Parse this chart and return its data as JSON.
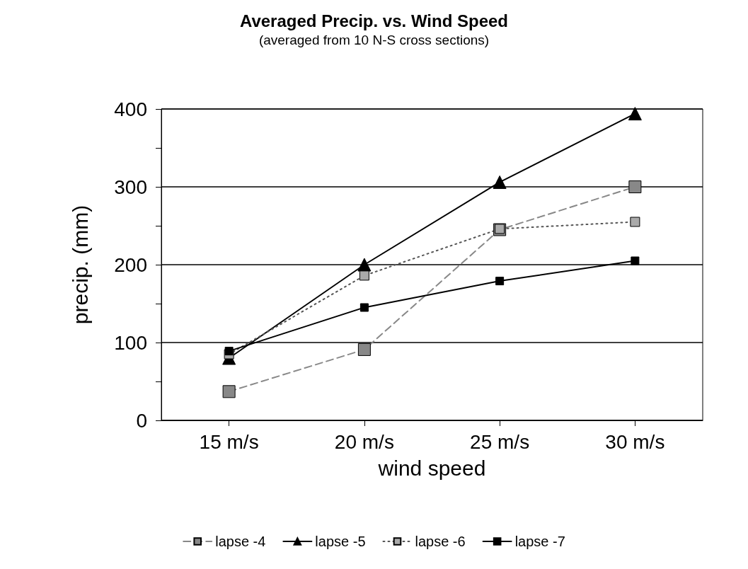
{
  "chart_data": {
    "type": "line",
    "title": "Averaged Precip. vs. Wind Speed",
    "subtitle": "(averaged from 10 N-S cross sections)",
    "xlabel": "wind speed",
    "ylabel": "precip. (mm)",
    "categories": [
      "15 m/s",
      "20 m/s",
      "25 m/s",
      "30 m/s"
    ],
    "series": [
      {
        "name": "lapse -4",
        "color": "#888888",
        "marker": "square",
        "line_style": "dashed",
        "values": [
          37,
          91,
          245,
          300
        ]
      },
      {
        "name": "lapse -5",
        "color": "#000000",
        "marker": "triangle",
        "line_style": "solid",
        "values": [
          80,
          200,
          306,
          394
        ]
      },
      {
        "name": "lapse -6",
        "color": "#aaaaaa",
        "marker": "square",
        "line_style": "dotted",
        "values": [
          85,
          186,
          246,
          255
        ]
      },
      {
        "name": "lapse -7",
        "color": "#000000",
        "marker": "square",
        "line_style": "solid",
        "values": [
          89,
          145,
          179,
          205
        ]
      }
    ],
    "ylim": [
      0,
      400
    ],
    "yticks": [
      0,
      {
        "value": 50,
        "label": null
      },
      100,
      {
        "value": 150,
        "label": null
      },
      200,
      {
        "value": 250,
        "label": null
      },
      300,
      {
        "value": 350,
        "label": null
      },
      400
    ],
    "grid": "y",
    "legend": "bottom"
  }
}
